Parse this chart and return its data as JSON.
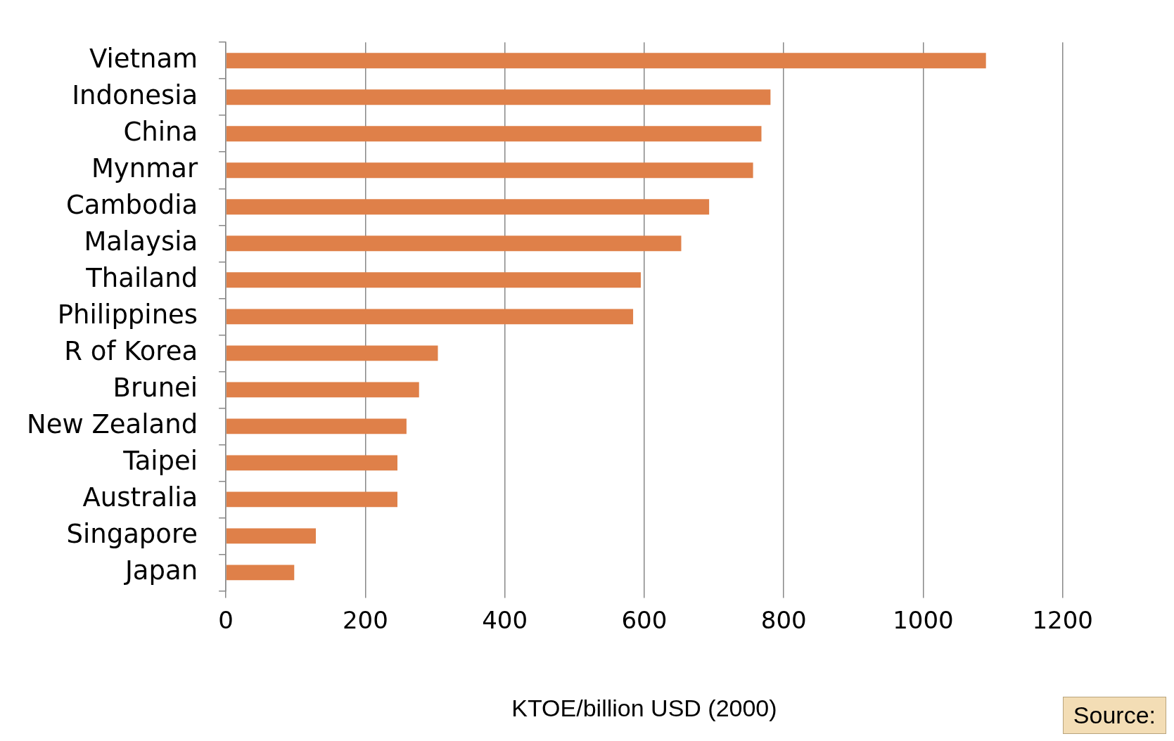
{
  "chart_data": {
    "type": "bar",
    "orientation": "horizontal",
    "xlabel": "KTOE/billion USD (2000)",
    "categories": [
      "Vietnam",
      "Indonesia",
      "China",
      "Mynmar",
      "Cambodia",
      "Malaysia",
      "Thailand",
      "Philippines",
      "R of Korea",
      "Brunei",
      "New Zealand",
      "Taipei",
      "Australia",
      "Singapore",
      "Japan"
    ],
    "values": [
      1090,
      781,
      768,
      756,
      693,
      653,
      595,
      584,
      304,
      277,
      259,
      246,
      246,
      129,
      98
    ],
    "color": "#df8049",
    "xlim": [
      0,
      1200
    ],
    "xticks": [
      0,
      200,
      400,
      600,
      800,
      1000,
      1200
    ],
    "grid": "x",
    "legend": false,
    "annotations": [
      "Source:"
    ]
  }
}
